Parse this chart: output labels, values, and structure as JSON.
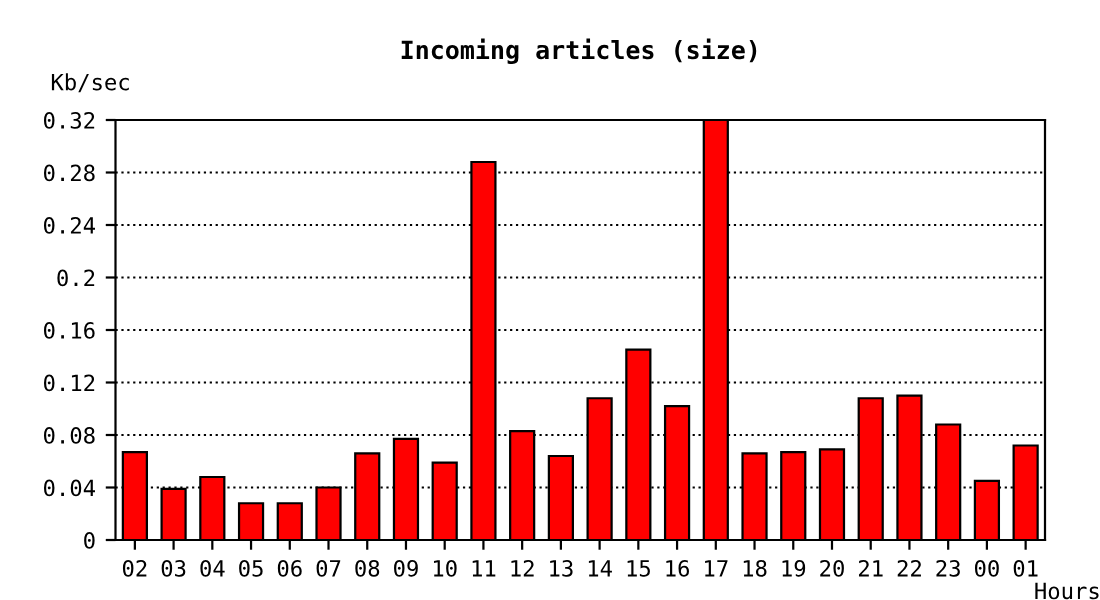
{
  "chart_data": {
    "type": "bar",
    "title": "Incoming articles (size)",
    "ylabel": "Kb/sec",
    "xlabel": "Hours",
    "categories": [
      "02",
      "03",
      "04",
      "05",
      "06",
      "07",
      "08",
      "09",
      "10",
      "11",
      "12",
      "13",
      "14",
      "15",
      "16",
      "17",
      "18",
      "19",
      "20",
      "21",
      "22",
      "23",
      "00",
      "01"
    ],
    "values": [
      0.067,
      0.039,
      0.048,
      0.028,
      0.028,
      0.04,
      0.066,
      0.077,
      0.059,
      0.288,
      0.083,
      0.064,
      0.108,
      0.145,
      0.102,
      0.32,
      0.066,
      0.067,
      0.069,
      0.108,
      0.11,
      0.088,
      0.045,
      0.072
    ],
    "color": "#ff0000",
    "ylim": [
      0,
      0.32
    ],
    "yticks": [
      0,
      0.04,
      0.08,
      0.12,
      0.16,
      0.2,
      0.24,
      0.28,
      0.32
    ],
    "grid": "y",
    "line_style": "dotted"
  }
}
